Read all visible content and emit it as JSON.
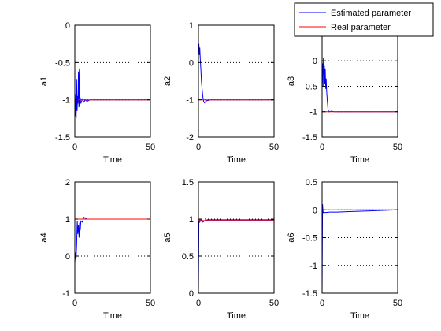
{
  "chart_data": [
    {
      "type": "line",
      "ylabel": "a1",
      "xlabel": "Time",
      "xlim": [
        0,
        50
      ],
      "ylim": [
        -1.5,
        0
      ],
      "xticks": [
        "0",
        "50"
      ],
      "yticks": [
        "-1.5",
        "-1",
        "-0.5",
        "0"
      ],
      "hlines": [
        -0.5,
        -1,
        -1.5
      ],
      "series": [
        {
          "name": "Estimated parameter",
          "color": "#0000ff",
          "x": [
            0,
            0.3,
            0.6,
            0.9,
            1.2,
            1.5,
            1.8,
            2.1,
            2.4,
            2.7,
            3,
            3.3,
            3.6,
            4,
            4.5,
            5,
            6,
            7,
            8,
            10,
            15,
            20,
            30,
            35,
            40,
            50
          ],
          "y": [
            -1.05,
            -1.22,
            -0.92,
            -1.25,
            -0.72,
            -1.15,
            -0.95,
            -1.05,
            -0.62,
            -1.1,
            -0.58,
            -1.08,
            -0.97,
            -1.05,
            -1.02,
            -0.99,
            -1.03,
            -1.0,
            -1.02,
            -1.0,
            -1.0,
            -1.0,
            -1.0,
            -1.0,
            -1.0,
            -1.0
          ]
        },
        {
          "name": "Real parameter",
          "color": "#ff0000",
          "x": [
            0,
            50
          ],
          "y": [
            -1.0,
            -1.0
          ]
        }
      ]
    },
    {
      "type": "line",
      "ylabel": "a2",
      "xlabel": "Time",
      "xlim": [
        0,
        50
      ],
      "ylim": [
        -2,
        1
      ],
      "xticks": [
        "0",
        "50"
      ],
      "yticks": [
        "-2",
        "-1",
        "0",
        "1"
      ],
      "hlines": [
        0,
        -1
      ],
      "series": [
        {
          "name": "Estimated parameter",
          "color": "#0000ff",
          "x": [
            0,
            0.3,
            0.6,
            0.9,
            1.2,
            1.6,
            2,
            2.5,
            3,
            3.5,
            4,
            5,
            6,
            8,
            10,
            20,
            50
          ],
          "y": [
            0.3,
            0.5,
            0.2,
            0.4,
            0.1,
            -0.2,
            -0.5,
            -0.75,
            -0.95,
            -1.05,
            -1.08,
            -1.03,
            -1.02,
            -1.0,
            -1.0,
            -1.0,
            -1.0
          ]
        },
        {
          "name": "Real parameter",
          "color": "#ff0000",
          "x": [
            0,
            50
          ],
          "y": [
            -1.0,
            -1.0
          ]
        }
      ]
    },
    {
      "type": "line",
      "ylabel": "a3",
      "xlabel": "Time",
      "xlim": [
        0,
        50
      ],
      "ylim": [
        -1.5,
        0.7
      ],
      "xticks": [
        "0",
        "50"
      ],
      "yticks": [
        "-1.5",
        "-1",
        "-0.5",
        "0"
      ],
      "hlines": [
        0,
        -0.5,
        -1
      ],
      "series": [
        {
          "name": "Estimated parameter",
          "color": "#0000ff",
          "x": [
            0,
            0.3,
            0.6,
            0.9,
            1.2,
            1.5,
            1.8,
            2.1,
            2.4,
            2.7,
            3,
            3.5,
            4,
            5,
            6,
            8,
            10,
            20,
            30,
            50
          ],
          "y": [
            -0.3,
            -0.05,
            -0.5,
            0.05,
            -0.25,
            -0.1,
            -0.45,
            -0.15,
            -0.55,
            -0.35,
            -0.6,
            -0.8,
            -0.98,
            -1.0,
            -0.99,
            -1.0,
            -1.0,
            -1.0,
            -1.0,
            -1.0
          ]
        },
        {
          "name": "Real parameter",
          "color": "#ff0000",
          "x": [
            0,
            50
          ],
          "y": [
            -1.0,
            -1.0
          ]
        }
      ]
    },
    {
      "type": "line",
      "ylabel": "a4",
      "xlabel": "Time",
      "xlim": [
        0,
        50
      ],
      "ylim": [
        -1,
        2
      ],
      "xticks": [
        "0",
        "50"
      ],
      "yticks": [
        "-1",
        "0",
        "1",
        "2"
      ],
      "hlines": [
        1,
        0
      ],
      "series": [
        {
          "name": "Estimated parameter",
          "color": "#0000ff",
          "x": [
            0,
            0.4,
            0.8,
            1.2,
            1.6,
            2,
            2.4,
            2.8,
            3.2,
            3.6,
            4,
            5,
            6,
            7,
            8,
            10,
            15,
            20,
            50
          ],
          "y": [
            -0.2,
            0.1,
            -0.1,
            0.3,
            0.95,
            0.6,
            0.85,
            0.5,
            0.9,
            0.7,
            0.95,
            0.92,
            1.05,
            1.02,
            1.0,
            1.0,
            1.0,
            1.0,
            1.0
          ]
        },
        {
          "name": "Real parameter",
          "color": "#ff0000",
          "x": [
            0,
            50
          ],
          "y": [
            1.0,
            1.0
          ]
        }
      ]
    },
    {
      "type": "line",
      "ylabel": "a5",
      "xlabel": "Time",
      "xlim": [
        0,
        50
      ],
      "ylim": [
        0,
        1.5
      ],
      "xticks": [
        "0",
        "50"
      ],
      "yticks": [
        "0",
        "0.5",
        "1",
        "1.5"
      ],
      "hlines": [
        1,
        0.5
      ],
      "series": [
        {
          "name": "Estimated parameter",
          "color": "#0000ff",
          "x": [
            0,
            0.3,
            0.6,
            1,
            1.5,
            2,
            3,
            4,
            6,
            8,
            10,
            20,
            50
          ],
          "y": [
            0.0,
            0.98,
            0.95,
            1.0,
            0.97,
            0.99,
            0.96,
            0.98,
            0.99,
            0.99,
            0.99,
            0.99,
            0.99
          ]
        },
        {
          "name": "Real parameter",
          "color": "#ff0000",
          "x": [
            0,
            50
          ],
          "y": [
            0.98,
            0.98
          ]
        }
      ]
    },
    {
      "type": "line",
      "ylabel": "a6",
      "xlabel": "Time",
      "xlim": [
        0,
        50
      ],
      "ylim": [
        -1.5,
        0.5
      ],
      "xticks": [
        "0",
        "50"
      ],
      "yticks": [
        "-1.5",
        "-1",
        "-0.5",
        "0",
        "0.5"
      ],
      "hlines": [
        0,
        -0.5,
        -1
      ],
      "series": [
        {
          "name": "Estimated parameter",
          "color": "#0000ff",
          "x": [
            0,
            0.3,
            0.6,
            1,
            2,
            5,
            10,
            20,
            30,
            40,
            50
          ],
          "y": [
            -1.5,
            0.1,
            -0.05,
            -0.04,
            -0.05,
            -0.04,
            -0.04,
            -0.03,
            -0.02,
            -0.01,
            0.0
          ]
        },
        {
          "name": "Real parameter",
          "color": "#ff0000",
          "x": [
            0,
            50
          ],
          "y": [
            0.0,
            0.0
          ]
        }
      ]
    }
  ],
  "legend": {
    "placement": "top-right",
    "items": [
      {
        "label": "Estimated parameter",
        "color": "#0000ff"
      },
      {
        "label": "Real parameter",
        "color": "#ff0000"
      }
    ]
  }
}
